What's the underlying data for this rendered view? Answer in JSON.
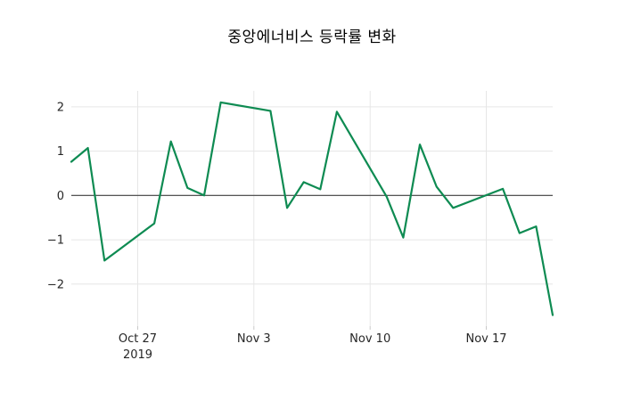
{
  "chart_data": {
    "type": "line",
    "title": "중앙에너비스 등락률 변화",
    "xlabel": "",
    "ylabel": "",
    "legend": "none",
    "grid": true,
    "zero_line": true,
    "background": "#ffffff",
    "grid_color": "#e6e6e6",
    "zero_line_color": "#404040",
    "text_color": "#262626",
    "xlim": [
      "2019-10-23",
      "2019-11-21"
    ],
    "ylim": [
      -2.95,
      2.36
    ],
    "y_ticks": [
      {
        "value": 2,
        "label": "2"
      },
      {
        "value": 1,
        "label": "1"
      },
      {
        "value": 0,
        "label": "0"
      },
      {
        "value": -1,
        "label": "−1"
      },
      {
        "value": -2,
        "label": "−2"
      }
    ],
    "x_ticks": [
      {
        "date": "2019-10-27",
        "label": "Oct 27",
        "sublabel": "2019"
      },
      {
        "date": "2019-11-03",
        "label": "Nov 3"
      },
      {
        "date": "2019-11-10",
        "label": "Nov 10"
      },
      {
        "date": "2019-11-17",
        "label": "Nov 17"
      }
    ],
    "series": [
      {
        "color": "#0e8b52",
        "x": [
          "2019-10-23",
          "2019-10-24",
          "2019-10-25",
          "2019-10-28",
          "2019-10-29",
          "2019-10-30",
          "2019-10-31",
          "2019-11-01",
          "2019-11-04",
          "2019-11-05",
          "2019-11-06",
          "2019-11-07",
          "2019-11-08",
          "2019-11-11",
          "2019-11-12",
          "2019-11-13",
          "2019-11-14",
          "2019-11-15",
          "2019-11-18",
          "2019-11-19",
          "2019-11-20",
          "2019-11-21"
        ],
        "values": [
          0.76,
          1.07,
          -1.47,
          -0.63,
          1.22,
          0.17,
          0.0,
          2.1,
          1.91,
          -0.28,
          0.3,
          0.14,
          1.89,
          -0.03,
          -0.95,
          1.15,
          0.2,
          -0.28,
          0.15,
          -0.85,
          -0.7,
          -2.7
        ]
      }
    ]
  }
}
